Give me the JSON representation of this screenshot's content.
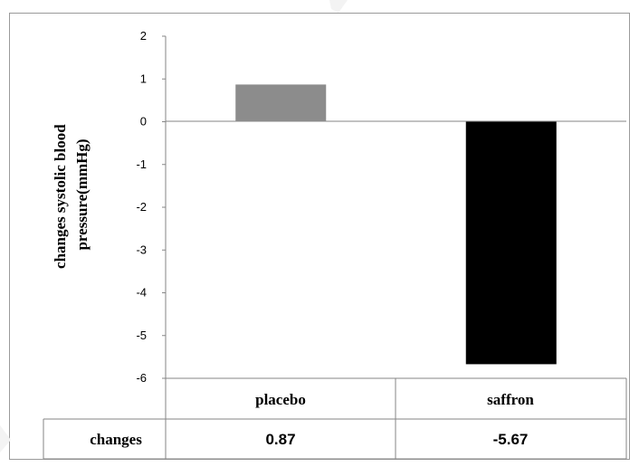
{
  "chart_data": {
    "type": "bar",
    "title": "",
    "xlabel": "",
    "ylabel": "changes systolic blood pressure(mmHg)",
    "ylabel_lines": [
      "changes systolic  blood",
      "pressure(mmHg)"
    ],
    "categories": [
      "placebo",
      "saffron"
    ],
    "series": [
      {
        "name": "changes",
        "values": [
          0.87,
          -5.67
        ],
        "value_labels": [
          "0.87",
          "-5.67"
        ],
        "colors": [
          "#8c8c8c",
          "#000000"
        ]
      }
    ],
    "ylim": [
      -6,
      2
    ],
    "yticks": [
      2,
      1,
      0,
      -1,
      -2,
      -3,
      -4,
      -5,
      -6
    ],
    "grid": false,
    "legend": "none",
    "data_table": true
  }
}
